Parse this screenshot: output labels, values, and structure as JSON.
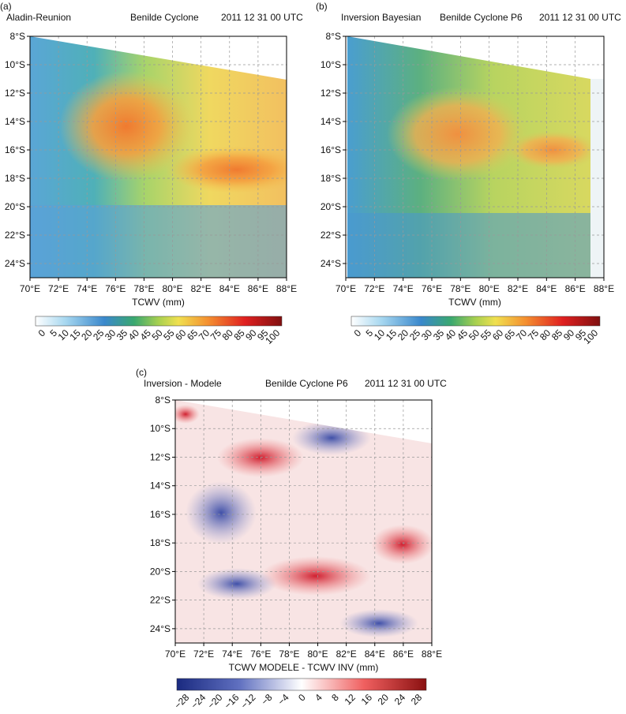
{
  "panels": [
    {
      "label": "(a)",
      "title_left": "Aladin-Reunion",
      "title_center": "Benilde Cyclone",
      "title_right": "2011 12 31 00 UTC",
      "yticks": [
        "8°S",
        "10°S",
        "12°S",
        "14°S",
        "16°S",
        "18°S",
        "20°S",
        "22°S",
        "24°S"
      ],
      "xticks": [
        "70°E",
        "72°E",
        "74°E",
        "76°E",
        "78°E",
        "80°E",
        "82°E",
        "84°E",
        "86°E",
        "88°E"
      ],
      "xlabel": "TCWV (mm)",
      "colorbar_ticks": [
        "0",
        "5",
        "10",
        "15",
        "20",
        "25",
        "30",
        "35",
        "40",
        "45",
        "50",
        "55",
        "60",
        "65",
        "70",
        "75",
        "80",
        "85",
        "90",
        "95",
        "100"
      ]
    },
    {
      "label": "(b)",
      "title_left": "Inversion Bayesian",
      "title_center": "Benilde Cyclone P6",
      "title_right": "2011 12 31 00 UTC",
      "yticks": [
        "8°S",
        "10°S",
        "12°S",
        "14°S",
        "16°S",
        "18°S",
        "20°S",
        "22°S",
        "24°S"
      ],
      "xticks": [
        "70°E",
        "72°E",
        "74°E",
        "76°E",
        "78°E",
        "80°E",
        "82°E",
        "84°E",
        "86°E",
        "88°E"
      ],
      "xlabel": "TCWV (mm)",
      "colorbar_ticks": [
        "0",
        "5",
        "10",
        "15",
        "20",
        "25",
        "30",
        "35",
        "40",
        "45",
        "50",
        "55",
        "60",
        "65",
        "70",
        "75",
        "80",
        "85",
        "90",
        "95",
        "100"
      ]
    },
    {
      "label": "(c)",
      "title_left": "Inversion - Modele",
      "title_center": "Benilde Cyclone P6",
      "title_right": "2011 12 31 00 UTC",
      "yticks": [
        "8°S",
        "10°S",
        "12°S",
        "14°S",
        "16°S",
        "18°S",
        "20°S",
        "22°S",
        "24°S"
      ],
      "xticks": [
        "70°E",
        "72°E",
        "74°E",
        "76°E",
        "78°E",
        "80°E",
        "82°E",
        "84°E",
        "86°E",
        "88°E"
      ],
      "xlabel": "TCWV MODELE - TCWV INV (mm)",
      "colorbar_ticks": [
        "−28",
        "−24",
        "−20",
        "−16",
        "−12",
        "−8",
        "−4",
        "0",
        "4",
        "8",
        "12",
        "16",
        "20",
        "24",
        "28"
      ]
    }
  ]
}
